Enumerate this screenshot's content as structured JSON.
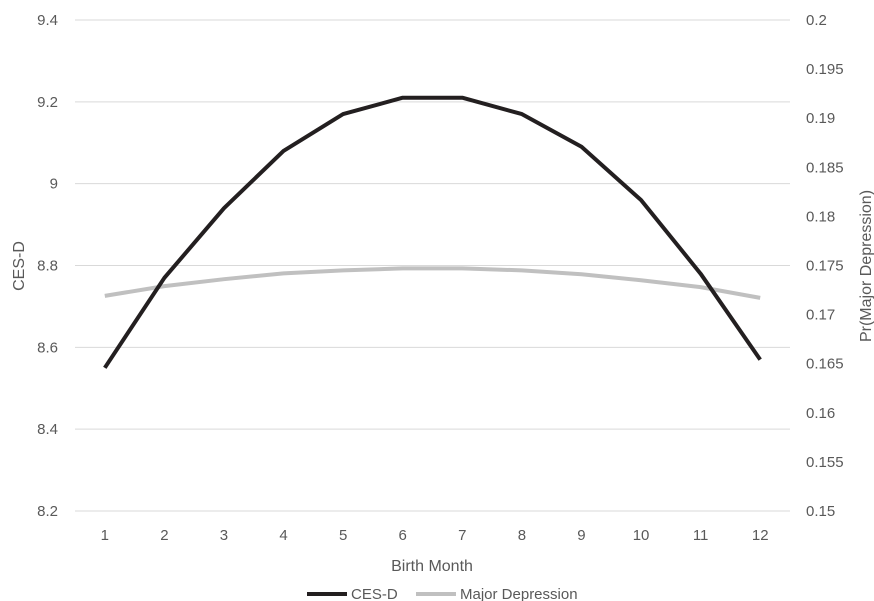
{
  "chart_data": {
    "type": "line",
    "categories": [
      "1",
      "2",
      "3",
      "4",
      "5",
      "6",
      "7",
      "8",
      "9",
      "10",
      "11",
      "12"
    ],
    "xlabel": "Birth Month",
    "ylabel": "CES-D",
    "y2label": "Pr(Major Depression)",
    "ylim": [
      8.2,
      9.4
    ],
    "y_ticks": [
      "8.2",
      "8.4",
      "8.6",
      "8.8",
      "9",
      "9.2",
      "9.4"
    ],
    "y2lim": [
      0.15,
      0.2
    ],
    "y2_ticks": [
      "0.15",
      "0.155",
      "0.16",
      "0.165",
      "0.17",
      "0.175",
      "0.18",
      "0.185",
      "0.19",
      "0.195",
      "0.2"
    ],
    "grid": true,
    "legend_position": "bottom",
    "series": [
      {
        "name": "CES-D",
        "axis": "left",
        "color": "#231f20",
        "values": [
          8.55,
          8.77,
          8.94,
          9.08,
          9.17,
          9.21,
          9.21,
          9.17,
          9.09,
          8.96,
          8.78,
          8.57
        ]
      },
      {
        "name": "Major Depression",
        "axis": "right",
        "color": "#c0c0c0",
        "values": [
          0.1719,
          0.1729,
          0.1736,
          0.1742,
          0.1745,
          0.1747,
          0.1747,
          0.1745,
          0.1741,
          0.1735,
          0.1728,
          0.1717
        ]
      }
    ]
  }
}
